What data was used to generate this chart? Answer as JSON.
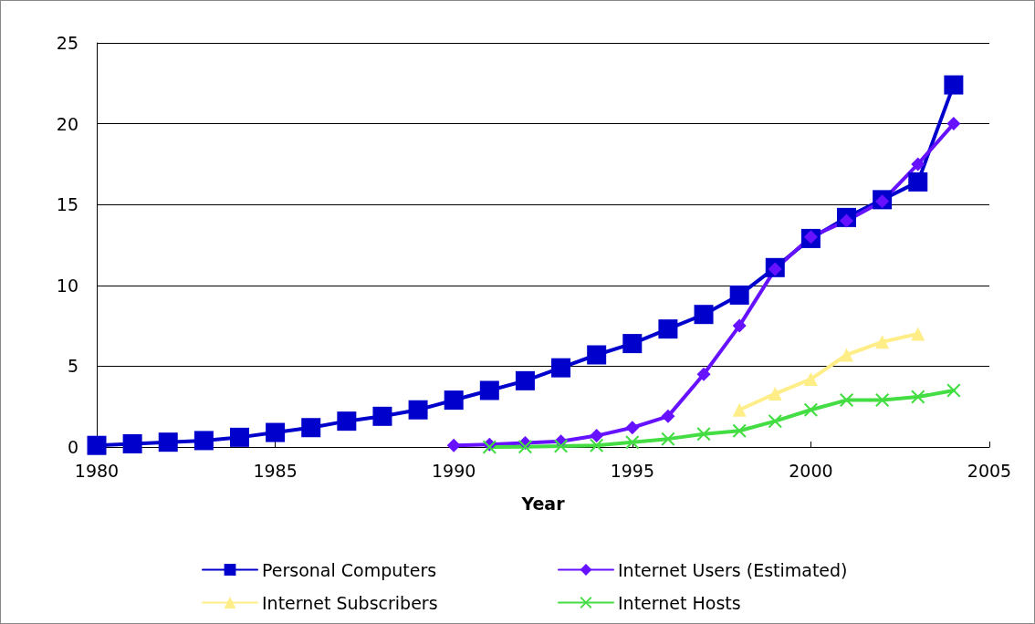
{
  "chart_data": {
    "type": "line",
    "xlabel": "Year",
    "xlim": [
      1980,
      2005
    ],
    "xticks": [
      1980,
      1985,
      1990,
      1995,
      2000,
      2005
    ],
    "ylim": [
      0,
      25
    ],
    "yticks": [
      0,
      5,
      10,
      15,
      20,
      25
    ],
    "grid": "y",
    "legend": "bottom",
    "series": [
      {
        "name": "Personal Computers",
        "color": "#0000cc",
        "marker": "square",
        "x": [
          1980,
          1981,
          1982,
          1983,
          1984,
          1985,
          1986,
          1987,
          1988,
          1989,
          1990,
          1991,
          1992,
          1993,
          1994,
          1995,
          1996,
          1997,
          1998,
          1999,
          2000,
          2001,
          2002,
          2003,
          2004
        ],
        "values": [
          0.1,
          0.2,
          0.3,
          0.4,
          0.6,
          0.9,
          1.2,
          1.6,
          1.9,
          2.3,
          2.9,
          3.5,
          4.1,
          4.9,
          5.7,
          6.4,
          7.3,
          8.2,
          9.4,
          11.1,
          12.9,
          14.2,
          15.3,
          16.4,
          22.4
        ]
      },
      {
        "name": "Internet Users (Estimated)",
        "color": "#6611ff",
        "marker": "diamond",
        "x": [
          1990,
          1991,
          1992,
          1993,
          1994,
          1995,
          1996,
          1997,
          1998,
          1999,
          2000,
          2001,
          2002,
          2003,
          2004
        ],
        "values": [
          0.1,
          0.15,
          0.25,
          0.35,
          0.7,
          1.2,
          1.9,
          4.5,
          7.5,
          11,
          13,
          14,
          15.2,
          17.5,
          20
        ]
      },
      {
        "name": "Internet Subscribers",
        "color": "#ffee88",
        "marker": "triangle",
        "x": [
          1998,
          1999,
          2000,
          2001,
          2002,
          2003
        ],
        "values": [
          2.3,
          3.3,
          4.2,
          5.7,
          6.5,
          7
        ]
      },
      {
        "name": "Internet Hosts",
        "color": "#44dd44",
        "marker": "cross",
        "x": [
          1991,
          1992,
          1993,
          1994,
          1995,
          1996,
          1997,
          1998,
          1999,
          2000,
          2001,
          2002,
          2003,
          2004
        ],
        "values": [
          0,
          0.02,
          0.05,
          0.1,
          0.3,
          0.5,
          0.8,
          1.0,
          1.6,
          2.3,
          2.9,
          2.9,
          3.1,
          3.5
        ]
      }
    ]
  }
}
